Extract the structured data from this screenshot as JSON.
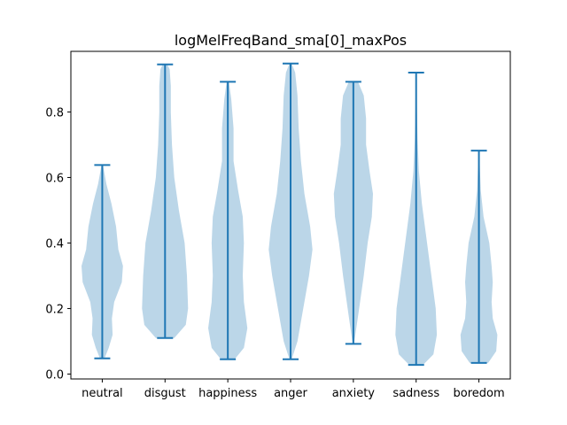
{
  "chart_data": {
    "type": "violin",
    "title": "logMelFreqBand_sma[0]_maxPos",
    "xlabel": "",
    "ylabel": "",
    "ylim": [
      -0.015,
      0.985
    ],
    "yticks": [
      "0.0",
      "0.2",
      "0.4",
      "0.6",
      "0.8"
    ],
    "grid": false,
    "colors": {
      "body": "#1f77b4",
      "line": "#1f77b4"
    },
    "categories": [
      "neutral",
      "disgust",
      "happiness",
      "anger",
      "anxiety",
      "sadness",
      "boredom"
    ],
    "series": [
      {
        "category": "neutral",
        "min": 0.048,
        "max": 0.638,
        "profile": [
          [
            0.048,
            0.1
          ],
          [
            0.08,
            0.28
          ],
          [
            0.12,
            0.45
          ],
          [
            0.17,
            0.42
          ],
          [
            0.22,
            0.52
          ],
          [
            0.28,
            0.85
          ],
          [
            0.33,
            0.9
          ],
          [
            0.38,
            0.7
          ],
          [
            0.45,
            0.6
          ],
          [
            0.52,
            0.4
          ],
          [
            0.58,
            0.18
          ],
          [
            0.638,
            0.03
          ]
        ]
      },
      {
        "category": "disgust",
        "min": 0.11,
        "max": 0.945,
        "profile": [
          [
            0.11,
            0.4
          ],
          [
            0.15,
            0.9
          ],
          [
            0.2,
            1.0
          ],
          [
            0.3,
            0.95
          ],
          [
            0.4,
            0.85
          ],
          [
            0.5,
            0.6
          ],
          [
            0.6,
            0.4
          ],
          [
            0.7,
            0.3
          ],
          [
            0.8,
            0.25
          ],
          [
            0.88,
            0.25
          ],
          [
            0.93,
            0.2
          ],
          [
            0.945,
            0.1
          ]
        ]
      },
      {
        "category": "happiness",
        "min": 0.045,
        "max": 0.892,
        "profile": [
          [
            0.045,
            0.3
          ],
          [
            0.08,
            0.7
          ],
          [
            0.14,
            0.85
          ],
          [
            0.22,
            0.7
          ],
          [
            0.3,
            0.65
          ],
          [
            0.4,
            0.7
          ],
          [
            0.48,
            0.65
          ],
          [
            0.56,
            0.45
          ],
          [
            0.65,
            0.25
          ],
          [
            0.75,
            0.25
          ],
          [
            0.84,
            0.15
          ],
          [
            0.892,
            0.05
          ]
        ]
      },
      {
        "category": "anger",
        "min": 0.045,
        "max": 0.948,
        "profile": [
          [
            0.045,
            0.05
          ],
          [
            0.1,
            0.3
          ],
          [
            0.2,
            0.55
          ],
          [
            0.3,
            0.8
          ],
          [
            0.38,
            0.95
          ],
          [
            0.45,
            0.85
          ],
          [
            0.55,
            0.6
          ],
          [
            0.65,
            0.45
          ],
          [
            0.75,
            0.35
          ],
          [
            0.85,
            0.3
          ],
          [
            0.92,
            0.2
          ],
          [
            0.948,
            0.05
          ]
        ]
      },
      {
        "category": "anxiety",
        "min": 0.092,
        "max": 0.892,
        "profile": [
          [
            0.092,
            0.03
          ],
          [
            0.2,
            0.25
          ],
          [
            0.3,
            0.45
          ],
          [
            0.4,
            0.62
          ],
          [
            0.48,
            0.8
          ],
          [
            0.55,
            0.85
          ],
          [
            0.62,
            0.7
          ],
          [
            0.7,
            0.55
          ],
          [
            0.78,
            0.55
          ],
          [
            0.85,
            0.45
          ],
          [
            0.892,
            0.2
          ]
        ]
      },
      {
        "category": "sadness",
        "min": 0.028,
        "max": 0.92,
        "profile": [
          [
            0.028,
            0.3
          ],
          [
            0.06,
            0.75
          ],
          [
            0.12,
            0.9
          ],
          [
            0.2,
            0.85
          ],
          [
            0.28,
            0.7
          ],
          [
            0.36,
            0.55
          ],
          [
            0.44,
            0.4
          ],
          [
            0.52,
            0.25
          ],
          [
            0.62,
            0.12
          ],
          [
            0.72,
            0.06
          ],
          [
            0.82,
            0.03
          ],
          [
            0.92,
            0.02
          ]
        ]
      },
      {
        "category": "boredom",
        "min": 0.034,
        "max": 0.682,
        "profile": [
          [
            0.034,
            0.4
          ],
          [
            0.07,
            0.75
          ],
          [
            0.12,
            0.8
          ],
          [
            0.17,
            0.6
          ],
          [
            0.22,
            0.55
          ],
          [
            0.28,
            0.6
          ],
          [
            0.33,
            0.55
          ],
          [
            0.4,
            0.45
          ],
          [
            0.48,
            0.2
          ],
          [
            0.56,
            0.08
          ],
          [
            0.63,
            0.04
          ],
          [
            0.682,
            0.02
          ]
        ]
      }
    ]
  }
}
